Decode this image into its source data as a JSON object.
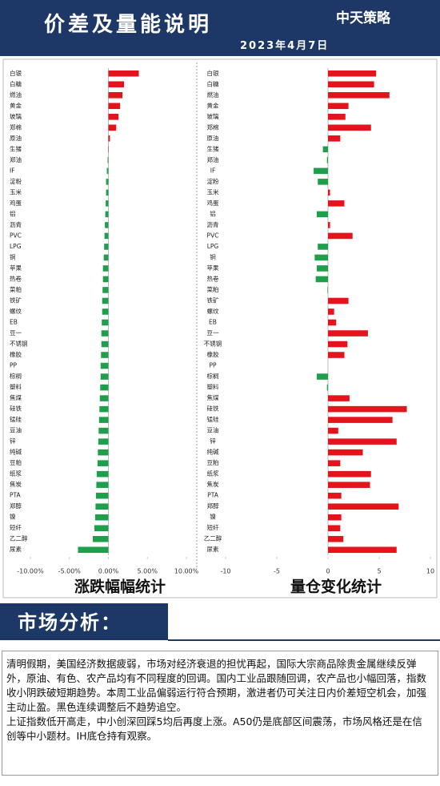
{
  "header": {
    "title": "价差及量能说明",
    "logo": "中天策略",
    "date": "2023年4月7日"
  },
  "chart_data": [
    {
      "type": "hbar",
      "title": "涨跌幅幅统计",
      "categories": [
        "白银",
        "白糖",
        "燃油",
        "黄金",
        "玻璃",
        "郑棉",
        "原油",
        "生猪",
        "郑油",
        "IF",
        "淀粉",
        "玉米",
        "鸡蛋",
        "铝",
        "沥青",
        "PVC",
        "LPG",
        "铜",
        "苹果",
        "热卷",
        "菜粕",
        "铁矿",
        "螺纹",
        "EB",
        "豆一",
        "不锈钢",
        "橡胶",
        "PP",
        "棕榈",
        "塑料",
        "焦煤",
        "硅铁",
        "锰硅",
        "豆油",
        "锌",
        "纯碱",
        "豆粕",
        "纸浆",
        "焦炭",
        "PTA",
        "郑醇",
        "镍",
        "短纤",
        "乙二醇",
        "尿素"
      ],
      "values": [
        3.9,
        2.0,
        1.8,
        1.5,
        1.3,
        1.0,
        0.2,
        0.05,
        -0.1,
        -0.2,
        -0.3,
        -0.3,
        -0.35,
        -0.4,
        -0.45,
        -0.5,
        -0.55,
        -0.6,
        -0.7,
        -0.7,
        -0.75,
        -0.8,
        -0.8,
        -0.85,
        -0.9,
        -0.9,
        -0.95,
        -1.0,
        -1.0,
        -1.05,
        -1.1,
        -1.15,
        -1.2,
        -1.25,
        -1.3,
        -1.35,
        -1.4,
        -1.5,
        -1.55,
        -1.6,
        -1.65,
        -1.7,
        -1.8,
        -2.0,
        -3.9
      ],
      "color": "#e3141c",
      "negative_color": "#1f9e4c",
      "xlim": [
        -10,
        10
      ],
      "xticks": [
        {
          "value": -10,
          "label": "-10.00%"
        },
        {
          "value": -5,
          "label": "-5.00%"
        },
        {
          "value": 0,
          "label": "0.00%"
        },
        {
          "value": 5,
          "label": "5.00%"
        },
        {
          "value": 10,
          "label": "10.00%"
        }
      ]
    },
    {
      "type": "hbar",
      "title": "量仓变化统计",
      "categories": [
        "白银",
        "白糖",
        "燃油",
        "黄金",
        "玻璃",
        "郑棉",
        "原油",
        "生猪",
        "郑油",
        "IF",
        "淀粉",
        "玉米",
        "鸡蛋",
        "铝",
        "沥青",
        "PVC",
        "LPG",
        "铜",
        "苹果",
        "热卷",
        "菜粕",
        "铁矿",
        "螺纹",
        "EB",
        "豆一",
        "不锈钢",
        "橡胶",
        "PP",
        "棕榈",
        "塑料",
        "焦煤",
        "硅铁",
        "锰硅",
        "豆油",
        "锌",
        "纯碱",
        "豆粕",
        "纸浆",
        "焦炭",
        "PTA",
        "郑醇",
        "镍",
        "短纤",
        "乙二醇",
        "尿素"
      ],
      "values": [
        4.7,
        4.5,
        6.0,
        2.0,
        1.7,
        4.2,
        1.2,
        -0.5,
        -0.1,
        -1.4,
        -1.0,
        0.2,
        1.6,
        -1.1,
        0.2,
        2.4,
        -1.0,
        -1.3,
        -1.1,
        -1.2,
        -0.05,
        2.0,
        0.6,
        0.8,
        3.9,
        1.9,
        1.6,
        0,
        -1.1,
        -0.1,
        2.1,
        7.7,
        6.3,
        1.0,
        6.7,
        3.4,
        1.2,
        4.2,
        4.1,
        1.3,
        6.9,
        1.3,
        1.2,
        1.5,
        6.7
      ],
      "color": "#e3141c",
      "negative_color": "#1f9e4c",
      "xlim": [
        -10,
        10
      ],
      "xticks": [
        -10,
        -5,
        0,
        5,
        10
      ]
    }
  ],
  "analysis": {
    "heading": "市场分析：",
    "paragraphs": [
      "清明假期，美国经济数据疲弱，市场对经济衰退的担忧再起，国际大宗商品除贵金属继续反弹外，原油、有色、农产品均有不同程度的回调。国内工业品跟随回调，农产品也小幅回落，指数收小阴跌破短期趋势。本周工业品偏弱运行符合预期，激进者仍可关注日内价差短空机会，加强主动止盈。黑色连续调整后不趋势追空。",
      "上证指数低开高走，中小创深回踩5均后再度上涨。A50仍是底部区间震荡，市场风格还是在信创等中小题材。IH底仓持有观察。"
    ]
  }
}
